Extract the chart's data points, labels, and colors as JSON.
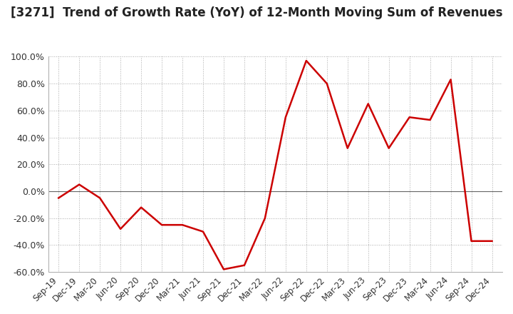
{
  "title": "[3271]  Trend of Growth Rate (YoY) of 12-Month Moving Sum of Revenues",
  "title_fontsize": 12,
  "line_color": "#cc0000",
  "background_color": "#ffffff",
  "grid_color": "#aaaaaa",
  "ylim": [
    -60,
    100
  ],
  "yticks": [
    -60,
    -40,
    -20,
    0,
    20,
    40,
    60,
    80,
    100
  ],
  "dates": [
    "Sep-19",
    "Dec-19",
    "Mar-20",
    "Jun-20",
    "Sep-20",
    "Dec-20",
    "Mar-21",
    "Jun-21",
    "Sep-21",
    "Dec-21",
    "Mar-22",
    "Jun-22",
    "Sep-22",
    "Dec-22",
    "Mar-23",
    "Jun-23",
    "Sep-23",
    "Dec-23",
    "Mar-24",
    "Jun-24",
    "Sep-24",
    "Dec-24"
  ],
  "values": [
    -5.0,
    5.0,
    -5.0,
    -28.0,
    -12.0,
    -25.0,
    -25.0,
    -30.0,
    -58.0,
    -55.0,
    -20.0,
    55.0,
    97.0,
    80.0,
    32.0,
    65.0,
    32.0,
    55.0,
    53.0,
    83.0,
    -37.0,
    -37.0
  ]
}
